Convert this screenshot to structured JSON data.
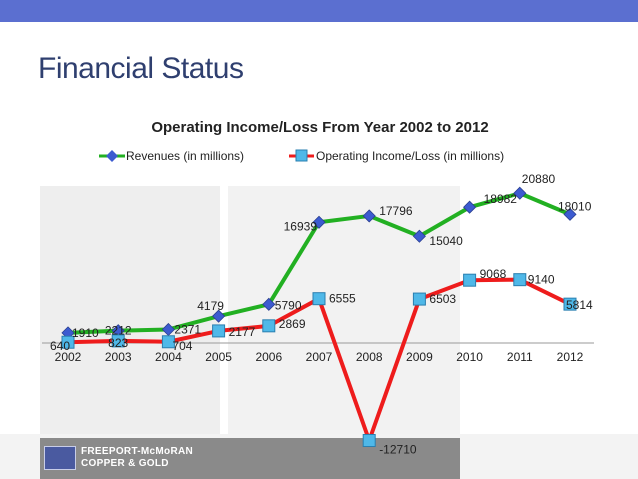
{
  "slide": {
    "title": "Financial Status"
  },
  "footer": {
    "logo_line1": "FREEPORT-McMoRAN",
    "logo_line2": "COPPER & GOLD"
  },
  "colors": {
    "header_bar": "#5b6fd0",
    "revenue_line": "#22b022",
    "revenue_marker": "#3c5bd0",
    "income_line": "#ee1c1c",
    "income_marker": "#4fb8e8"
  },
  "chart_data": {
    "type": "line",
    "title": "Operating Income/Loss From Year 2002 to 2012",
    "xlabel": "",
    "ylabel": "",
    "categories": [
      "2002",
      "2003",
      "2004",
      "2005",
      "2006",
      "2007",
      "2008",
      "2009",
      "2010",
      "2011",
      "2012"
    ],
    "ylim": [
      -14000,
      22000
    ],
    "grid": false,
    "legend_position": "top",
    "series": [
      {
        "name": "Revenues (in millions)",
        "marker": "diamond",
        "values": [
          1910,
          2212,
          2371,
          4179,
          5790,
          16939,
          17796,
          15040,
          18982,
          20880,
          18010
        ]
      },
      {
        "name": "Operating Income/Loss (in millions)",
        "marker": "square",
        "values": [
          640,
          823,
          704,
          2177,
          2869,
          6555,
          -12710,
          6503,
          9068,
          9140,
          5814
        ]
      }
    ]
  }
}
